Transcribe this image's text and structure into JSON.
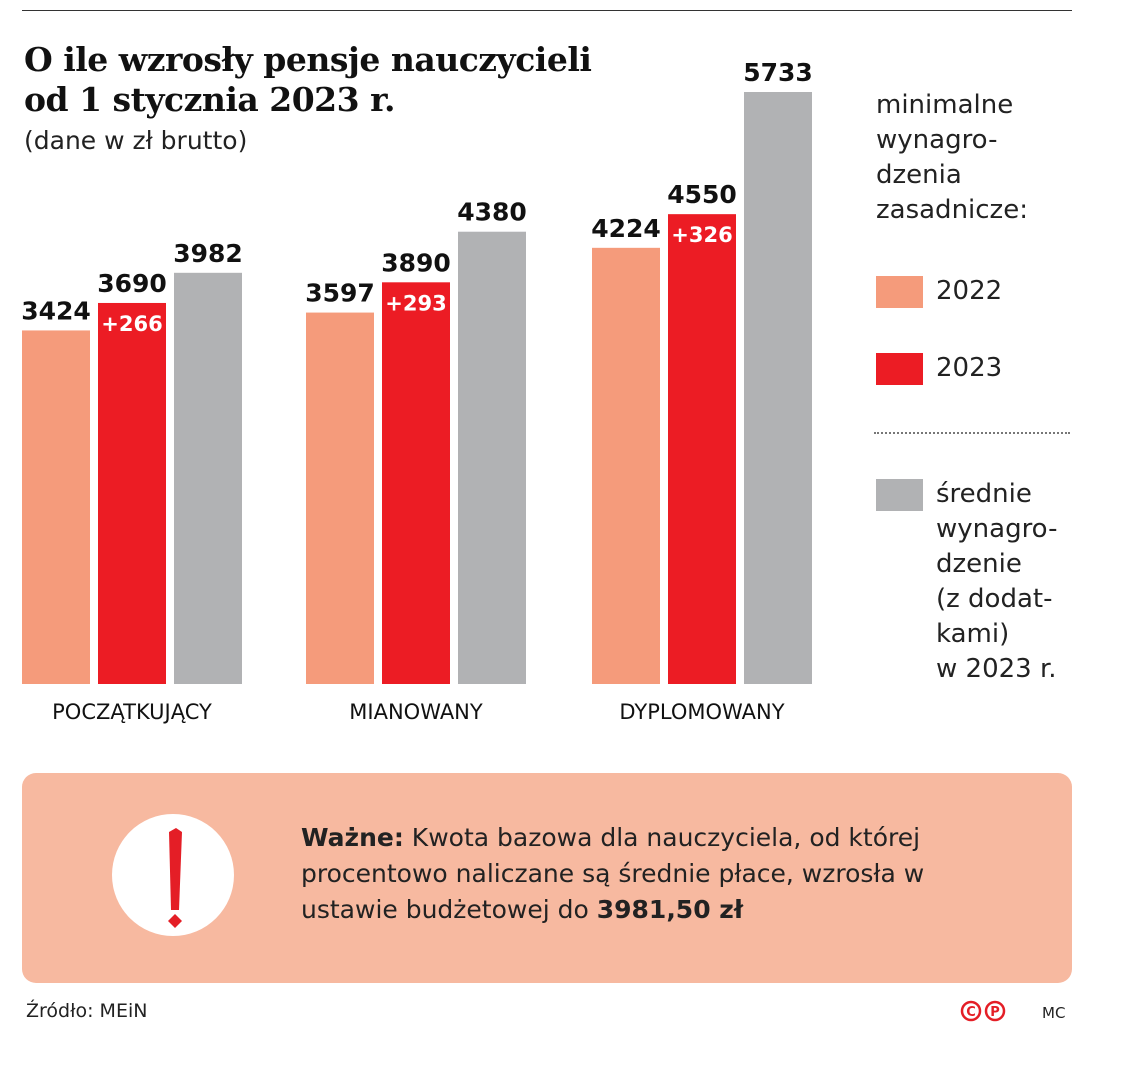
{
  "chart_data": {
    "type": "bar",
    "title": "O ile wzrosły pensje nauczycieli od 1 stycznia 2023 r.",
    "subtitle": "(dane w zł brutto)",
    "categories": [
      "POCZĄTKUJĄCY",
      "MIANOWANY",
      "DYPLOMOWANY"
    ],
    "series": [
      {
        "name": "2022",
        "color": "#f59b7b",
        "values": [
          3424,
          3597,
          4224
        ]
      },
      {
        "name": "2023",
        "color": "#ec1c24",
        "values": [
          3690,
          3890,
          4550
        ],
        "increments": [
          "+266",
          "+293",
          "+326"
        ]
      },
      {
        "name": "średnie wynagro- dzenie (z dodat- kami) w 2023 r.",
        "color": "#b1b2b4",
        "values": [
          3982,
          4380,
          5733
        ]
      }
    ],
    "ylim": [
      0,
      5733
    ],
    "grid": false,
    "legend": {
      "heading": [
        "minimalne",
        "wynagro-",
        "dzenia",
        "zasadnicze:"
      ],
      "item_2022": "2022",
      "item_2023": "2023",
      "item_avg": [
        "średnie",
        "wynagro-",
        "dzenie",
        "(z dodat-",
        "kami)",
        "w 2023 r."
      ],
      "placement": "right"
    }
  },
  "header": {
    "title_line1": "O ile wzrosły pensje nauczycieli",
    "title_line2": "od 1 stycznia 2023 r.",
    "subtitle": "(dane w zł brutto)"
  },
  "note": {
    "bold_label": "Ważne:",
    "text1": " Kwota bazowa dla nauczyciela, od której procentowo naliczane są średnie płace, wzrosła w ustawie budżetowej do ",
    "bold_value": "3981,50 zł",
    "icon": "exclamation-icon"
  },
  "footer": {
    "source": "Źródło: MEiN",
    "copyright_icons": [
      "copyright-icon",
      "phonogram-icon"
    ],
    "author": "MC"
  }
}
